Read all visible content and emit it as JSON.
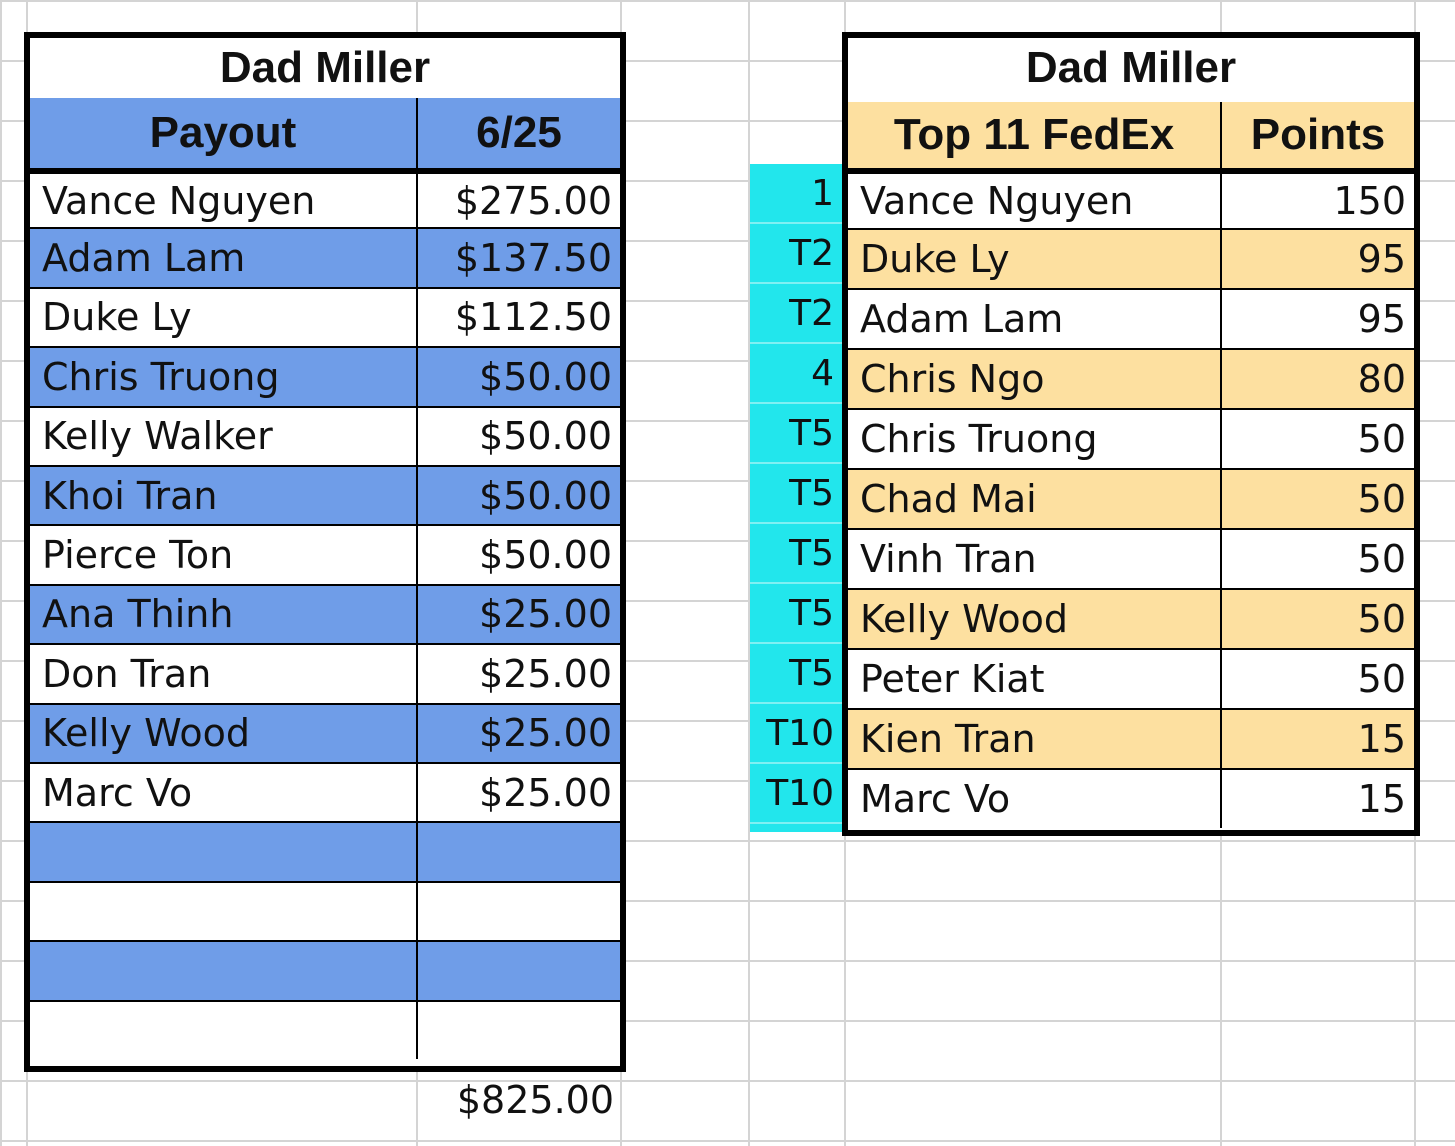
{
  "payout_table": {
    "title": "Dad Miller",
    "col_headers": [
      "Payout",
      "6/25"
    ],
    "rows": [
      {
        "name": "Vance Nguyen",
        "amount": "$275.00"
      },
      {
        "name": "Adam Lam",
        "amount": "$137.50"
      },
      {
        "name": "Duke Ly",
        "amount": "$112.50"
      },
      {
        "name": "Chris Truong",
        "amount": "$50.00"
      },
      {
        "name": "Kelly Walker",
        "amount": "$50.00"
      },
      {
        "name": "Khoi Tran",
        "amount": "$50.00"
      },
      {
        "name": "Pierce Ton",
        "amount": "$50.00"
      },
      {
        "name": "Ana Thinh",
        "amount": "$25.00"
      },
      {
        "name": "Don Tran",
        "amount": "$25.00"
      },
      {
        "name": "Kelly Wood",
        "amount": "$25.00"
      },
      {
        "name": "Marc Vo",
        "amount": "$25.00"
      },
      {
        "name": "",
        "amount": ""
      },
      {
        "name": "",
        "amount": ""
      },
      {
        "name": "",
        "amount": ""
      },
      {
        "name": "",
        "amount": ""
      }
    ],
    "total": "$825.00",
    "colors": {
      "band": "#6f9de8",
      "border": "#000000"
    }
  },
  "fedex_table": {
    "title": "Dad Miller",
    "col_headers": [
      "Top 11 FedEx",
      "Points"
    ],
    "rows": [
      {
        "rank": "1",
        "name": "Vance Nguyen",
        "points": "150"
      },
      {
        "rank": "T2",
        "name": "Duke Ly",
        "points": "95"
      },
      {
        "rank": "T2",
        "name": "Adam Lam",
        "points": "95"
      },
      {
        "rank": "4",
        "name": "Chris Ngo",
        "points": "80"
      },
      {
        "rank": "T5",
        "name": "Chris Truong",
        "points": "50"
      },
      {
        "rank": "T5",
        "name": "Chad Mai",
        "points": "50"
      },
      {
        "rank": "T5",
        "name": "Vinh Tran",
        "points": "50"
      },
      {
        "rank": "T5",
        "name": "Kelly Wood",
        "points": "50"
      },
      {
        "rank": "T5",
        "name": "Peter Kiat",
        "points": "50"
      },
      {
        "rank": "T10",
        "name": "Kien Tran",
        "points": "15"
      },
      {
        "rank": "T10",
        "name": "Marc Vo",
        "points": "15"
      }
    ],
    "colors": {
      "band": "#fde0a0",
      "rank_column": "#22e6ec",
      "border": "#000000"
    }
  }
}
